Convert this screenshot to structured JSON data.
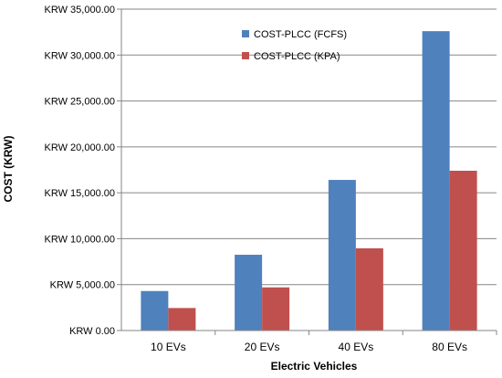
{
  "chart_data": {
    "type": "bar",
    "title": "",
    "xlabel": "Electric Vehicles",
    "ylabel": "COST (KRW)",
    "categories": [
      "10 EVs",
      "20 EVs",
      "40 EVs",
      "80 EVs"
    ],
    "ylim": [
      0,
      35000
    ],
    "ytick_step": 5000,
    "ytick_labels": [
      "KRW 0.00",
      "KRW 5,000.00",
      "KRW 10,000.00",
      "KRW 15,000.00",
      "KRW 20,000.00",
      "KRW 25,000.00",
      "KRW 30,000.00",
      "KRW 35,000.00"
    ],
    "grid": true,
    "legend_position": "top-center",
    "series": [
      {
        "name": "COST-PLCC (FCFS)",
        "color": "#4F81BD",
        "values": [
          4300,
          8250,
          16400,
          32600
        ]
      },
      {
        "name": "COST-PLCC (KPA)",
        "color": "#C0504D",
        "values": [
          2450,
          4700,
          8950,
          17400
        ]
      }
    ]
  }
}
